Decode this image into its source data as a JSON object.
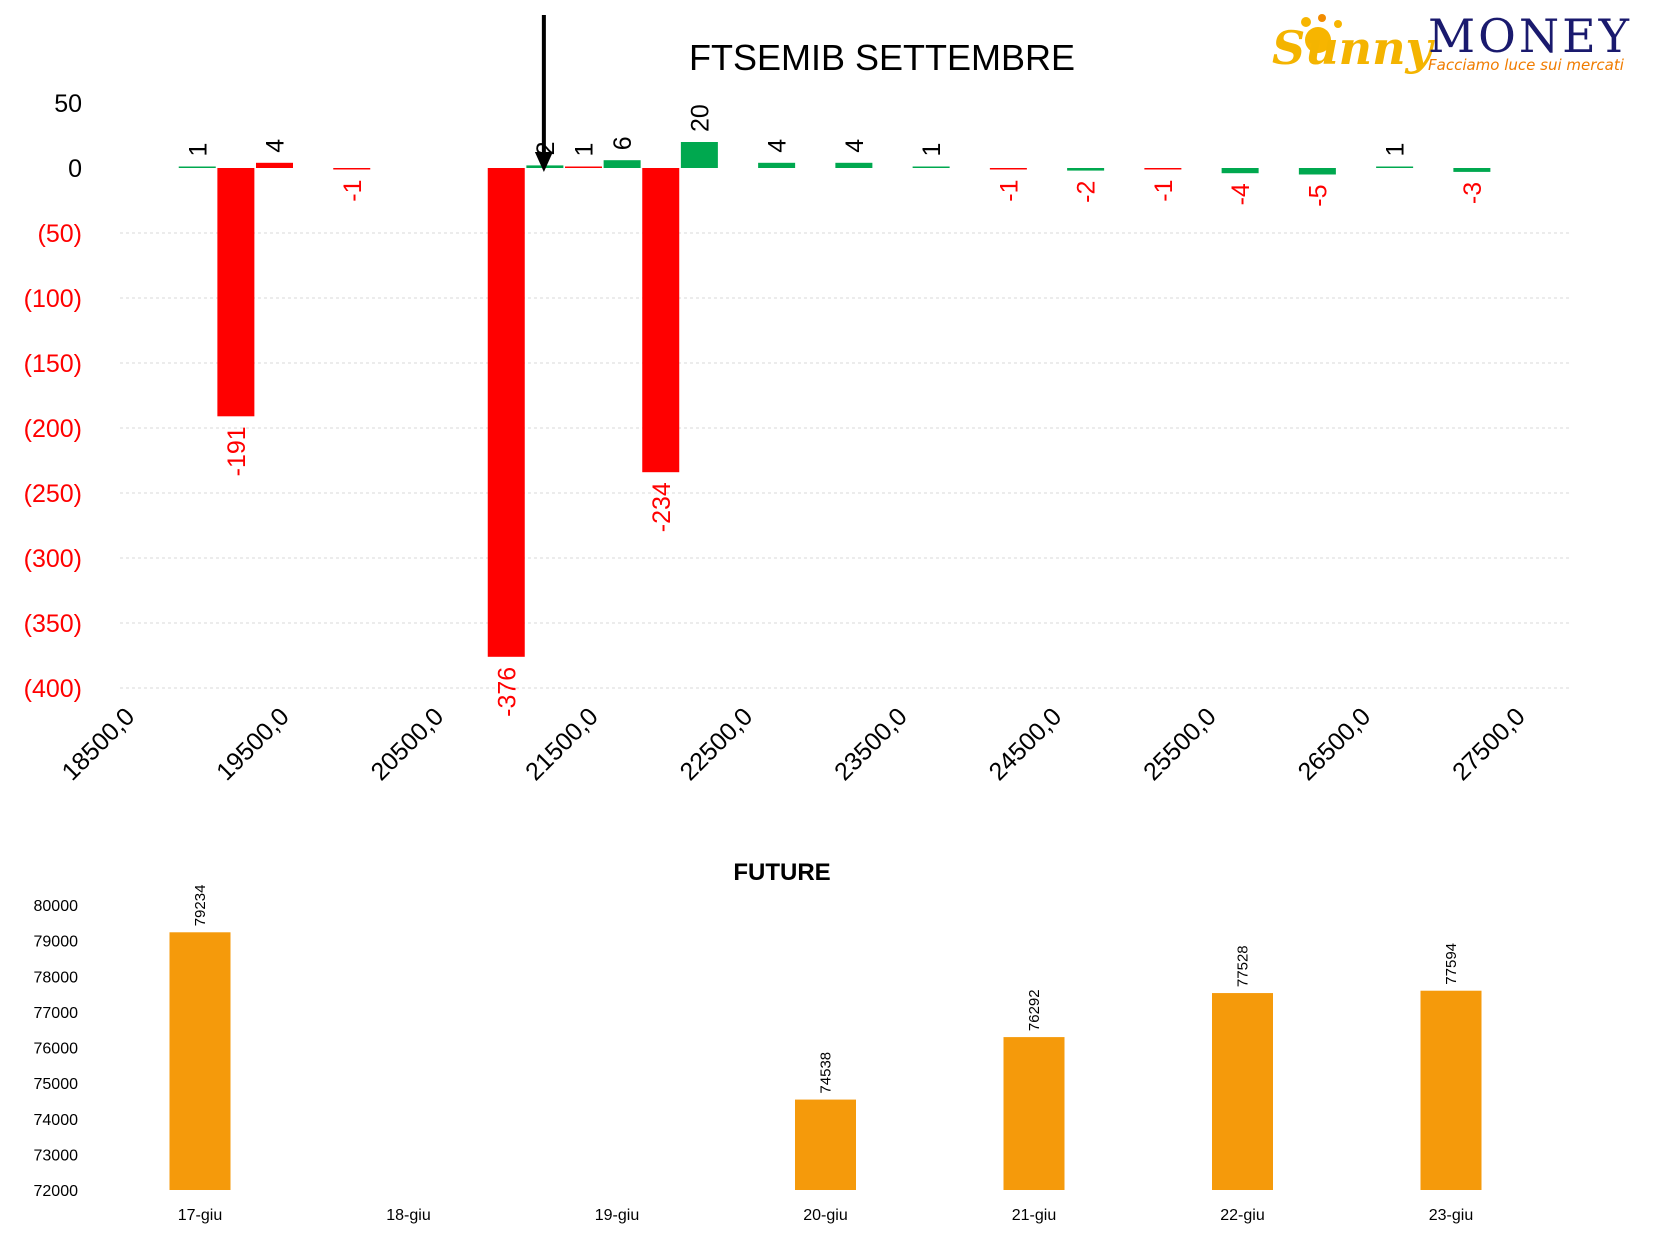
{
  "colors": {
    "positive": "#00a84f",
    "negative": "#ff0000",
    "future_bar": "#f59a0b",
    "grid": "#d9d9d9",
    "arrow": "#000000"
  },
  "logo": {
    "brand": "MONEY",
    "tagline": "Facciamo luce sui mercati",
    "script": "Sunny"
  },
  "chart_data": [
    {
      "type": "bar",
      "title": "FTSEMIB SETTEMBRE",
      "ylim": [
        -400,
        50
      ],
      "y_ticks": [
        {
          "value": 50,
          "label": "50",
          "color": "#000000"
        },
        {
          "value": 0,
          "label": "0",
          "color": "#000000"
        },
        {
          "value": -50,
          "label": "(50)",
          "color": "#ff0000"
        },
        {
          "value": -100,
          "label": "(100)",
          "color": "#ff0000"
        },
        {
          "value": -150,
          "label": "(150)",
          "color": "#ff0000"
        },
        {
          "value": -200,
          "label": "(200)",
          "color": "#ff0000"
        },
        {
          "value": -250,
          "label": "(250)",
          "color": "#ff0000"
        },
        {
          "value": -300,
          "label": "(300)",
          "color": "#ff0000"
        },
        {
          "value": -350,
          "label": "(350)",
          "color": "#ff0000"
        },
        {
          "value": -400,
          "label": "(400)",
          "color": "#ff0000"
        }
      ],
      "x_range": [
        18500,
        28000
      ],
      "x_ticks": [
        "18500,0",
        "19500,0",
        "20500,0",
        "21500,0",
        "22500,0",
        "23500,0",
        "24500,0",
        "25500,0",
        "26500,0",
        "27500,0"
      ],
      "x_tick_values": [
        18500,
        19500,
        20500,
        21500,
        22500,
        23500,
        24500,
        25500,
        26500,
        27500
      ],
      "grid": true,
      "marker_strike": 21250,
      "bars": [
        {
          "strike": 19000,
          "value": 1,
          "color": "green",
          "label": "1"
        },
        {
          "strike": 19250,
          "value": -191,
          "color": "red",
          "label": "-191"
        },
        {
          "strike": 19500,
          "value": 4,
          "color": "red",
          "label": "4"
        },
        {
          "strike": 20000,
          "value": -1,
          "color": "red",
          "label": "-1"
        },
        {
          "strike": 21000,
          "value": -376,
          "color": "red",
          "label": "-376"
        },
        {
          "strike": 21250,
          "value": 2,
          "color": "green",
          "label": "2"
        },
        {
          "strike": 21500,
          "value": 1,
          "color": "red",
          "label": "1"
        },
        {
          "strike": 21750,
          "value": 6,
          "color": "green",
          "label": "6"
        },
        {
          "strike": 22000,
          "value": -234,
          "color": "red",
          "label": "-234"
        },
        {
          "strike": 22250,
          "value": 20,
          "color": "green",
          "label": "20"
        },
        {
          "strike": 22750,
          "value": 4,
          "color": "green",
          "label": "4"
        },
        {
          "strike": 23250,
          "value": 4,
          "color": "green",
          "label": "4"
        },
        {
          "strike": 23750,
          "value": 1,
          "color": "green",
          "label": "1"
        },
        {
          "strike": 24250,
          "value": -1,
          "color": "red",
          "label": "-1"
        },
        {
          "strike": 24750,
          "value": -2,
          "color": "green",
          "label": "-2"
        },
        {
          "strike": 25250,
          "value": -1,
          "color": "red",
          "label": "-1"
        },
        {
          "strike": 25750,
          "value": -4,
          "color": "green",
          "label": "-4"
        },
        {
          "strike": 26250,
          "value": -5,
          "color": "green",
          "label": "-5"
        },
        {
          "strike": 26750,
          "value": 1,
          "color": "green",
          "label": "1"
        },
        {
          "strike": 27250,
          "value": -3,
          "color": "green",
          "label": "-3"
        }
      ]
    },
    {
      "type": "bar",
      "title": "FUTURE",
      "ylim": [
        72000,
        80000
      ],
      "y_ticks": [
        "80000",
        "79000",
        "78000",
        "77000",
        "76000",
        "75000",
        "74000",
        "73000",
        "72000"
      ],
      "y_tick_values": [
        80000,
        79000,
        78000,
        77000,
        76000,
        75000,
        74000,
        73000,
        72000
      ],
      "categories": [
        "17-giu",
        "18-giu",
        "19-giu",
        "20-giu",
        "21-giu",
        "22-giu",
        "23-giu"
      ],
      "values": [
        79234,
        null,
        null,
        74538,
        76292,
        77528,
        77594
      ],
      "labels": [
        "79234",
        "",
        "",
        "74538",
        "76292",
        "77528",
        "77594"
      ],
      "grid": false
    }
  ]
}
